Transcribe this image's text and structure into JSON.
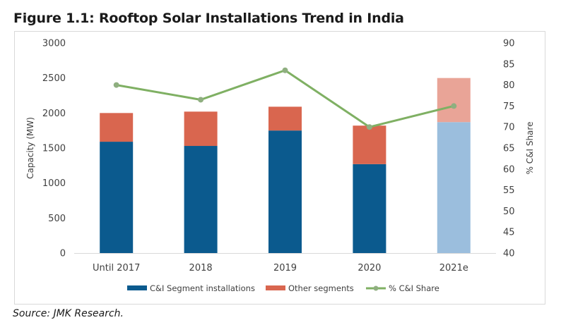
{
  "figure": {
    "title": "Figure 1.1: Rooftop Solar Installations Trend in India",
    "source": "Source: JMK Research."
  },
  "chart_data": {
    "type": "bar",
    "subtype": "stacked-bar-with-line-secondary-axis",
    "title": "Figure 1.1: Rooftop Solar Installations Trend in India",
    "categories": [
      "Until 2017",
      "2018",
      "2019",
      "2020",
      "2021e"
    ],
    "estimated_categories": [
      "2021e"
    ],
    "series": [
      {
        "name": "C&I Segment installations",
        "type": "bar",
        "axis": "left",
        "color": "#0B5A8E",
        "estimate_color": "#9BBEDD",
        "values": [
          1590,
          1530,
          1750,
          1270,
          1870
        ]
      },
      {
        "name": "Other segments",
        "type": "bar",
        "axis": "left",
        "color": "#D9664F",
        "estimate_color": "#E9A497",
        "values": [
          410,
          490,
          340,
          550,
          630
        ]
      },
      {
        "name": "% C&I Share",
        "type": "line",
        "axis": "right",
        "color": "#7FB063",
        "marker_color": "#8FAF80",
        "values": [
          80,
          76.5,
          83.5,
          70,
          75
        ]
      }
    ],
    "ylabel": "Capacity (MW)",
    "ylim": [
      0,
      3000
    ],
    "yticks": [
      0,
      500,
      1000,
      1500,
      2000,
      2500,
      3000
    ],
    "y2label": "% C&I Share",
    "y2lim": [
      40,
      90
    ],
    "y2ticks": [
      40,
      45,
      50,
      55,
      60,
      65,
      70,
      75,
      80,
      85,
      90
    ],
    "xlabel": "",
    "grid": false,
    "legend_position": "bottom"
  }
}
